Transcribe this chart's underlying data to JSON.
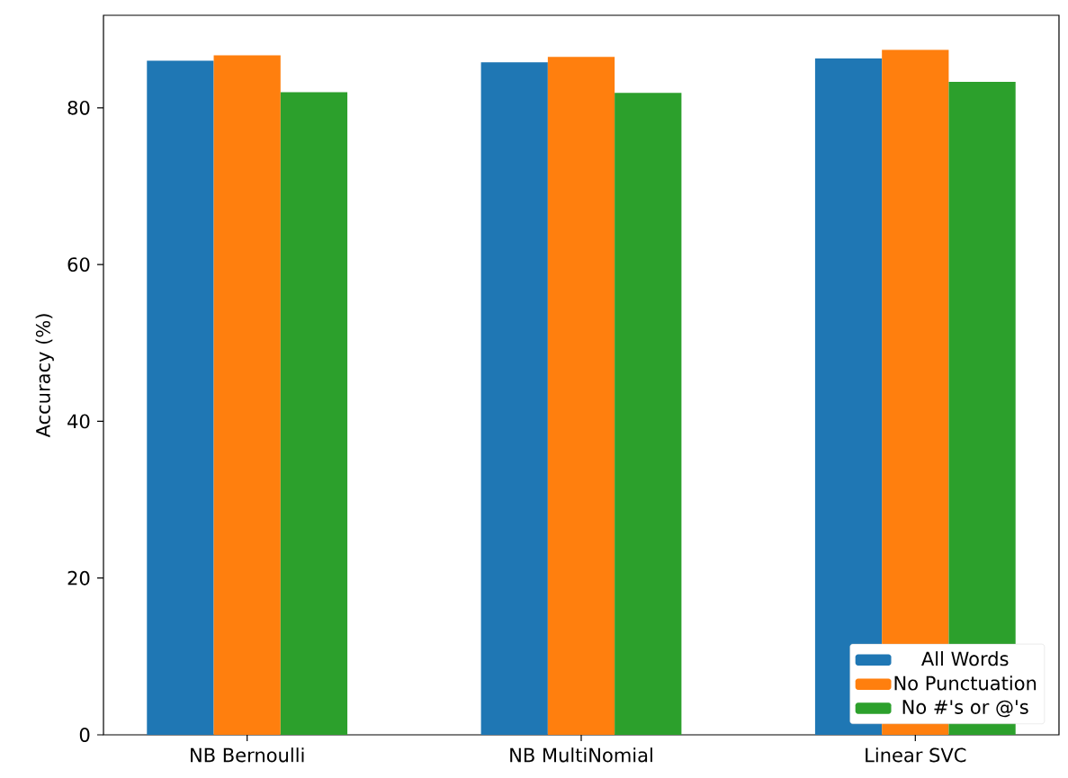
{
  "chart_data": {
    "type": "bar",
    "ylabel": "Accuracy (%)",
    "categories": [
      "NB Bernoulli",
      "NB MultiNomial",
      "Linear SVC"
    ],
    "series": [
      {
        "name": "All Words",
        "color": "#1f77b4",
        "values": [
          86.0,
          85.8,
          86.3
        ]
      },
      {
        "name": "No Punctuation",
        "color": "#ff7f0e",
        "values": [
          86.7,
          86.5,
          87.4
        ]
      },
      {
        "name": "No #'s or @'s",
        "color": "#2ca02c",
        "values": [
          82.0,
          81.9,
          83.3
        ]
      }
    ],
    "ylim": [
      0,
      91.8
    ],
    "yticks": [
      0,
      20,
      40,
      60,
      80
    ],
    "legend": "bottom right"
  }
}
